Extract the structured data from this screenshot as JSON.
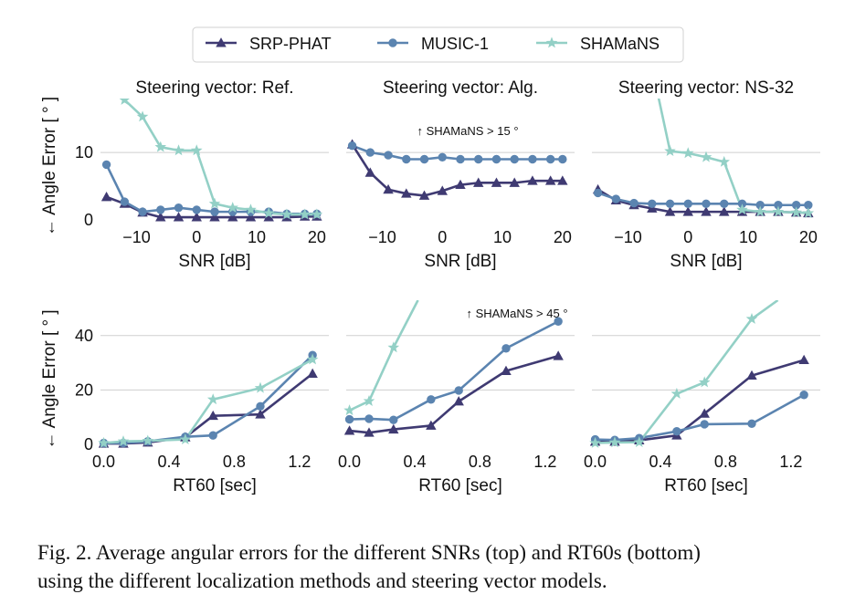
{
  "legend": [
    {
      "name": "SRP-PHAT",
      "marker": "triangle",
      "color": "#3f3a72"
    },
    {
      "name": "MUSIC-1",
      "marker": "circle",
      "color": "#5b84b0"
    },
    {
      "name": "SHAMaNS",
      "marker": "star",
      "color": "#93d0c6"
    }
  ],
  "chart_data": [
    {
      "type": "line",
      "title": "Steering vector: Ref.",
      "xlabel": "SNR [dB]",
      "ylabel": "← Angle Error [ ° ]",
      "xlim": [
        -16,
        22
      ],
      "ylim": [
        0,
        18
      ],
      "xticks": [
        -10,
        0,
        10,
        20
      ],
      "yticks": [
        0,
        10
      ],
      "x": [
        -15,
        -12,
        -9,
        -6,
        -3,
        0,
        3,
        6,
        9,
        12,
        15,
        18,
        20
      ],
      "series": [
        {
          "name": "SRP-PHAT",
          "values": [
            3.4,
            2.4,
            1.1,
            0.4,
            0.4,
            0.4,
            0.4,
            0.4,
            0.4,
            0.4,
            0.4,
            0.5,
            0.5
          ]
        },
        {
          "name": "MUSIC-1",
          "values": [
            8.2,
            2.7,
            1.2,
            1.5,
            1.8,
            1.5,
            1.2,
            1.2,
            1.2,
            1.2,
            0.9,
            0.9,
            0.9
          ]
        },
        {
          "name": "SHAMaNS",
          "values": [
            null,
            17.8,
            15.3,
            10.8,
            10.3,
            10.3,
            2.4,
            1.8,
            1.5,
            1.0,
            0.8,
            0.8,
            0.8
          ]
        }
      ]
    },
    {
      "type": "line",
      "title": "Steering vector: Alg.",
      "xlabel": "SNR [dB]",
      "ylabel": "",
      "xlim": [
        -16,
        22
      ],
      "ylim": [
        0,
        18
      ],
      "xticks": [
        -10,
        0,
        10,
        20
      ],
      "yticks": [
        0,
        10
      ],
      "annotation": "↑ SHAMaNS > 15 °",
      "x": [
        -15,
        -12,
        -9,
        -6,
        -3,
        0,
        3,
        6,
        9,
        12,
        15,
        18,
        20
      ],
      "series": [
        {
          "name": "SRP-PHAT",
          "values": [
            11.2,
            7.0,
            4.5,
            3.9,
            3.6,
            4.3,
            5.2,
            5.5,
            5.5,
            5.5,
            5.8,
            5.8,
            5.8
          ]
        },
        {
          "name": "MUSIC-1",
          "values": [
            11.0,
            10.0,
            9.6,
            9.0,
            9.0,
            9.3,
            9.0,
            9.0,
            9.0,
            9.0,
            9.0,
            9.0,
            9.0
          ]
        },
        {
          "name": "SHAMaNS",
          "values": [
            null,
            null,
            null,
            null,
            null,
            null,
            null,
            null,
            null,
            null,
            null,
            null,
            null
          ]
        }
      ]
    },
    {
      "type": "line",
      "title": "Steering vector: NS-32",
      "xlabel": "SNR [dB]",
      "ylabel": "",
      "xlim": [
        -16,
        22
      ],
      "ylim": [
        0,
        18
      ],
      "xticks": [
        -10,
        0,
        10,
        20
      ],
      "yticks": [
        0,
        10
      ],
      "x": [
        -15,
        -12,
        -9,
        -6,
        -3,
        0,
        3,
        6,
        9,
        12,
        15,
        18,
        20
      ],
      "series": [
        {
          "name": "SRP-PHAT",
          "values": [
            4.5,
            2.9,
            2.2,
            1.7,
            1.2,
            1.2,
            1.2,
            1.2,
            1.2,
            1.2,
            1.2,
            1.1,
            1.0
          ]
        },
        {
          "name": "MUSIC-1",
          "values": [
            4.0,
            3.1,
            2.5,
            2.4,
            2.4,
            2.4,
            2.4,
            2.4,
            2.4,
            2.2,
            2.2,
            2.2,
            2.2
          ]
        },
        {
          "name": "SHAMaNS",
          "values": [
            null,
            null,
            null,
            null,
            10.2,
            9.9,
            9.3,
            8.6,
            1.5,
            1.2,
            1.2,
            1.1,
            1.0
          ]
        }
      ],
      "partial_lines": [
        {
          "name": "SHAMaNS",
          "from": [
            -5,
            18.5
          ],
          "to": [
            -3,
            10.2
          ]
        }
      ]
    },
    {
      "type": "line",
      "title": "",
      "xlabel": "RT60 [sec]",
      "ylabel": "← Angle Error [ ° ]",
      "xlim": [
        -0.02,
        1.38
      ],
      "ylim": [
        0,
        53
      ],
      "xticks": [
        0.0,
        0.4,
        0.8,
        1.2
      ],
      "yticks": [
        0,
        20,
        40
      ],
      "x": [
        0.0,
        0.12,
        0.27,
        0.5,
        0.67,
        0.96,
        1.28
      ],
      "series": [
        {
          "name": "SRP-PHAT",
          "values": [
            0.3,
            0.3,
            0.7,
            2.6,
            10.5,
            11.0,
            26.0
          ]
        },
        {
          "name": "MUSIC-1",
          "values": [
            0.5,
            0.5,
            1.1,
            2.8,
            3.3,
            14.0,
            32.8
          ]
        },
        {
          "name": "SHAMaNS",
          "values": [
            0.5,
            1.1,
            1.3,
            1.8,
            16.5,
            20.7,
            31.2
          ]
        }
      ]
    },
    {
      "type": "line",
      "title": "",
      "xlabel": "RT60 [sec]",
      "ylabel": "",
      "xlim": [
        -0.02,
        1.38
      ],
      "ylim": [
        0,
        53
      ],
      "xticks": [
        0.0,
        0.4,
        0.8,
        1.2
      ],
      "yticks": [
        0,
        20,
        40
      ],
      "annotation": "↑ SHAMaNS > 45 °",
      "x": [
        0.0,
        0.12,
        0.27,
        0.5,
        0.67,
        0.96,
        1.28
      ],
      "series": [
        {
          "name": "SRP-PHAT",
          "values": [
            5.0,
            4.3,
            5.5,
            6.9,
            15.8,
            27.0,
            32.5
          ]
        },
        {
          "name": "MUSIC-1",
          "values": [
            9.2,
            9.4,
            9.0,
            16.5,
            19.8,
            35.3,
            45.2
          ]
        },
        {
          "name": "SHAMaNS",
          "values": [
            12.5,
            15.9,
            35.6,
            null,
            null,
            null,
            null
          ]
        }
      ],
      "partial_lines": [
        {
          "name": "SHAMaNS",
          "from": [
            0.27,
            35.6
          ],
          "to": [
            0.42,
            53.0
          ]
        }
      ]
    },
    {
      "type": "line",
      "title": "",
      "xlabel": "RT60 [sec]",
      "ylabel": "",
      "xlim": [
        -0.02,
        1.38
      ],
      "ylim": [
        0,
        53
      ],
      "xticks": [
        0.0,
        0.4,
        0.8,
        1.2
      ],
      "yticks": [
        0,
        20,
        40
      ],
      "x": [
        0.0,
        0.12,
        0.27,
        0.5,
        0.67,
        0.96,
        1.28
      ],
      "series": [
        {
          "name": "SRP-PHAT",
          "values": [
            1.0,
            1.0,
            1.5,
            3.3,
            11.3,
            25.3,
            31.0
          ]
        },
        {
          "name": "MUSIC-1",
          "values": [
            1.8,
            1.6,
            2.3,
            4.8,
            7.4,
            7.6,
            18.2
          ]
        },
        {
          "name": "SHAMaNS",
          "values": [
            0.5,
            0.7,
            0.8,
            18.6,
            22.8,
            46.1,
            null
          ]
        }
      ],
      "partial_lines": [
        {
          "name": "SHAMaNS",
          "from": [
            0.96,
            46.1
          ],
          "to": [
            1.12,
            53.0
          ]
        }
      ]
    }
  ],
  "caption": {
    "line1": "Fig. 2.  Average angular errors for the different SNRs (top) and RT60s (bottom)",
    "line2": "using the different localization methods and steering vector models."
  }
}
